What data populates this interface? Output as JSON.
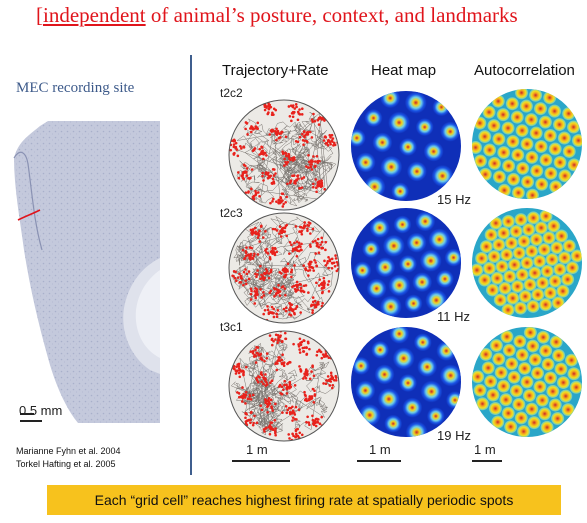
{
  "title": {
    "prefix": "[",
    "underlined": "independent",
    "rest": " of animal’s posture, context, and landmarks"
  },
  "left": {
    "site_label": "MEC recording site",
    "scale_label": "0.5 mm",
    "credits": [
      "Marianne Fyhn et al. 2004",
      "Torkel Hafting et al. 2005"
    ]
  },
  "columns": [
    "Trajectory+Rate",
    "Heat map",
    "Autocorrelation"
  ],
  "rows": [
    {
      "cell_id": "t2c2",
      "peak_rate": "15 Hz"
    },
    {
      "cell_id": "t2c3",
      "peak_rate": "11 Hz"
    },
    {
      "cell_id": "t3c1",
      "peak_rate": "19 Hz"
    }
  ],
  "scale_labels": [
    "1 m",
    "1 m",
    "1 m"
  ],
  "caption": "Each “grid cell” reaches highest firing rate at spatially periodic spots",
  "colors": {
    "title": "#e0141b",
    "caption_bg": "#f7c21d",
    "divider": "#3f5e8e",
    "site_label": "#3d5a8a"
  }
}
